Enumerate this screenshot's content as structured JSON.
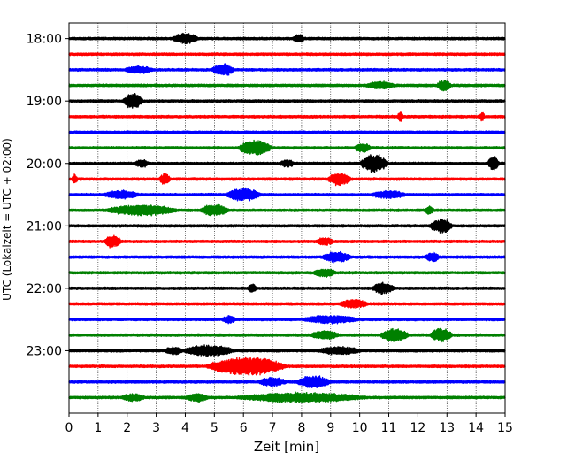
{
  "chart_data": {
    "type": "line",
    "title": "",
    "xlabel": "Zeit  [min]",
    "ylabel": "UTC (Lokalzeit = UTC + 02:00)",
    "xlim": [
      0,
      15
    ],
    "xticks": [
      0,
      1,
      2,
      3,
      4,
      5,
      6,
      7,
      8,
      9,
      10,
      11,
      12,
      13,
      14,
      15
    ],
    "ytick_labels": [
      "18:00",
      "19:00",
      "20:00",
      "21:00",
      "22:00",
      "23:00"
    ],
    "ylim": [
      "17:45",
      "24:00"
    ],
    "x_grid": "dotted",
    "line_colors": [
      "#000000",
      "#ff0000",
      "#0000ff",
      "#008000"
    ],
    "traces": [
      {
        "start": "18:00",
        "color": "#000000",
        "bursts": [
          [
            4.0,
            0.9,
            1.8
          ],
          [
            7.9,
            0.4,
            1.3
          ]
        ]
      },
      {
        "start": "18:15",
        "color": "#ff0000",
        "bursts": []
      },
      {
        "start": "18:30",
        "color": "#0000ff",
        "bursts": [
          [
            5.3,
            0.8,
            2.1
          ],
          [
            2.4,
            1.0,
            1.2
          ]
        ]
      },
      {
        "start": "18:45",
        "color": "#008000",
        "bursts": [
          [
            12.9,
            0.5,
            2.0
          ],
          [
            10.7,
            1.0,
            1.2
          ]
        ]
      },
      {
        "start": "19:00",
        "color": "#000000",
        "bursts": [
          [
            2.2,
            0.7,
            2.8
          ]
        ]
      },
      {
        "start": "19:15",
        "color": "#ff0000",
        "bursts": [
          [
            11.4,
            0.2,
            1.8
          ],
          [
            14.2,
            0.2,
            1.4
          ]
        ]
      },
      {
        "start": "19:30",
        "color": "#0000ff",
        "bursts": []
      },
      {
        "start": "19:45",
        "color": "#008000",
        "bursts": [
          [
            6.4,
            1.2,
            2.6
          ],
          [
            10.1,
            0.6,
            1.5
          ]
        ]
      },
      {
        "start": "20:00",
        "color": "#000000",
        "bursts": [
          [
            10.5,
            1.0,
            3.3
          ],
          [
            14.6,
            0.4,
            2.7
          ],
          [
            7.5,
            0.5,
            1.3
          ],
          [
            2.5,
            0.5,
            1.2
          ]
        ]
      },
      {
        "start": "20:15",
        "color": "#ff0000",
        "bursts": [
          [
            9.3,
            0.8,
            2.3
          ],
          [
            3.3,
            0.4,
            1.8
          ],
          [
            0.2,
            0.2,
            1.6
          ]
        ]
      },
      {
        "start": "20:30",
        "color": "#0000ff",
        "bursts": [
          [
            6.0,
            1.2,
            2.3
          ],
          [
            1.8,
            1.2,
            1.4
          ],
          [
            11.0,
            1.2,
            1.2
          ]
        ]
      },
      {
        "start": "20:45",
        "color": "#008000",
        "bursts": [
          [
            2.5,
            2.5,
            1.8
          ],
          [
            5.0,
            1.0,
            2.0
          ],
          [
            12.4,
            0.3,
            1.4
          ]
        ]
      },
      {
        "start": "21:00",
        "color": "#000000",
        "bursts": [
          [
            12.8,
            0.8,
            2.6
          ]
        ]
      },
      {
        "start": "21:15",
        "color": "#ff0000",
        "bursts": [
          [
            1.5,
            0.6,
            2.3
          ],
          [
            8.8,
            0.6,
            1.3
          ]
        ]
      },
      {
        "start": "21:30",
        "color": "#0000ff",
        "bursts": [
          [
            9.2,
            1.0,
            1.9
          ],
          [
            12.5,
            0.5,
            1.6
          ]
        ]
      },
      {
        "start": "21:45",
        "color": "#008000",
        "bursts": [
          [
            8.8,
            0.8,
            1.3
          ]
        ]
      },
      {
        "start": "22:00",
        "color": "#000000",
        "bursts": [
          [
            10.8,
            0.8,
            2.0
          ],
          [
            6.3,
            0.3,
            1.5
          ]
        ]
      },
      {
        "start": "22:15",
        "color": "#ff0000",
        "bursts": [
          [
            9.8,
            1.0,
            1.4
          ]
        ]
      },
      {
        "start": "22:30",
        "color": "#0000ff",
        "bursts": [
          [
            9.0,
            2.0,
            1.3
          ],
          [
            5.5,
            0.5,
            1.2
          ]
        ]
      },
      {
        "start": "22:45",
        "color": "#008000",
        "bursts": [
          [
            11.2,
            1.0,
            2.3
          ],
          [
            12.8,
            0.8,
            2.3
          ],
          [
            8.8,
            1.0,
            1.5
          ]
        ]
      },
      {
        "start": "23:00",
        "color": "#000000",
        "bursts": [
          [
            4.8,
            1.8,
            1.9
          ],
          [
            3.6,
            0.6,
            1.4
          ],
          [
            9.3,
            1.5,
            1.3
          ]
        ]
      },
      {
        "start": "23:15",
        "color": "#ff0000",
        "bursts": [
          [
            6.1,
            2.8,
            3.3
          ]
        ]
      },
      {
        "start": "23:30",
        "color": "#0000ff",
        "bursts": [
          [
            8.4,
            1.2,
            2.2
          ],
          [
            7.0,
            1.0,
            1.4
          ]
        ]
      },
      {
        "start": "23:45",
        "color": "#008000",
        "bursts": [
          [
            8.0,
            4.5,
            1.6
          ],
          [
            4.4,
            0.8,
            1.3
          ],
          [
            2.2,
            0.8,
            1.2
          ]
        ]
      }
    ]
  }
}
